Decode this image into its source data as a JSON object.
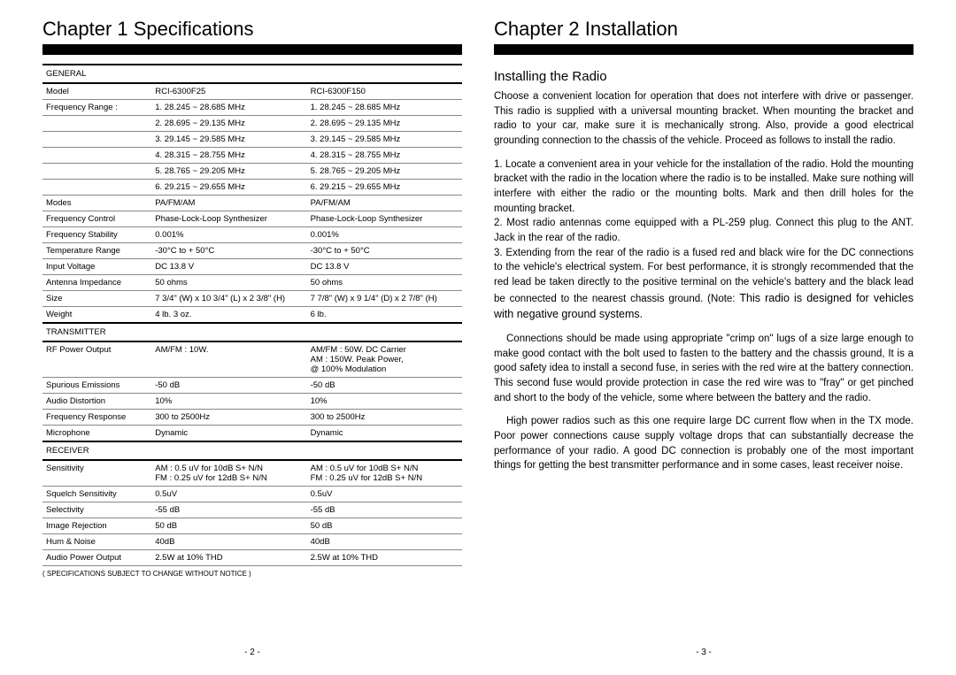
{
  "left": {
    "chapter": "Chapter 1  Specifications",
    "pageNum": "- 2 -",
    "footnote": "( SPECIFICATIONS SUBJECT TO CHANGE WITHOUT NOTICE )",
    "sections": {
      "general": "GENERAL",
      "transmitter": "TRANSMITTER",
      "receiver": "RECEIVER"
    },
    "models": {
      "a": "RCI-6300F25",
      "b": "RCI-6300F150"
    },
    "rows": {
      "model": "Model",
      "freqRange": "Frequency Range :",
      "fr1a": "1. 28.245 ~  28.685 MHz",
      "fr1b": "1. 28.245 ~  28.685 MHz",
      "fr2a": "2. 28.695 ~  29.135 MHz",
      "fr2b": "2. 28.695 ~  29.135 MHz",
      "fr3a": "3. 29.145 ~  29.585 MHz",
      "fr3b": "3. 29.145 ~  29.585 MHz",
      "fr4a": "4. 28.315 ~  28.755 MHz",
      "fr4b": "4. 28.315 ~  28.755 MHz",
      "fr5a": "5. 28.765 ~  29.205 MHz",
      "fr5b": "5. 28.765 ~  29.205 MHz",
      "fr6a": "6. 29.215 ~  29.655 MHz",
      "fr6b": "6. 29.215 ~  29.655 MHz",
      "modes": "Modes",
      "modesA": "PA/FM/AM",
      "modesB": "PA/FM/AM",
      "freqCtrl": "Frequency Control",
      "freqCtrlA": "Phase-Lock-Loop Synthesizer",
      "freqCtrlB": "Phase-Lock-Loop Synthesizer",
      "freqStab": "Frequency Stability",
      "freqStabA": "0.001%",
      "freqStabB": "0.001%",
      "tempRange": "Temperature Range",
      "tempRangeA": "-30°C to + 50°C",
      "tempRangeB": "-30°C to + 50°C",
      "inputV": "Input Voltage",
      "inputVA": "DC 13.8 V",
      "inputVB": "DC 13.8 V",
      "antImp": "Antenna Impedance",
      "antImpA": "50 ohms",
      "antImpB": "50 ohms",
      "size": "Size",
      "sizeA": "7 3/4\" (W) x 10 3/4\" (L) x 2 3/8\" (H)",
      "sizeB": "7 7/8\" (W) x 9 1/4\" (D) x 2 7/8\" (H)",
      "weight": "Weight",
      "weightA": "4 lb. 3 oz.",
      "weightB": "6 lb.",
      "rfOut": "RF Power Output",
      "rfOutA": "AM/FM : 10W.",
      "rfOutB1": "AM/FM :  50W. DC Carrier",
      "rfOutB2": "AM : 150W. Peak Power,",
      "rfOutB3": "@ 100% Modulation",
      "spur": "Spurious Emissions",
      "spurA": "-50 dB",
      "spurB": "-50 dB",
      "audioDist": "Audio Distortion",
      "audioDistA": "10%",
      "audioDistB": "10%",
      "freqResp": "Frequency Response",
      "freqRespA": "300 to 2500Hz",
      "freqRespB": "300 to 2500Hz",
      "mic": "Microphone",
      "micA": "Dynamic",
      "micB": "Dynamic",
      "sens": "Sensitivity",
      "sensA1": "AM :  0.5  uV  for 10dB  S+ N/N",
      "sensA2": "FM :  0.25 uV  for 12dB  S+ N/N",
      "sensB1": "AM :  0.5  uV  for 10dB  S+ N/N",
      "sensB2": "FM :  0.25 uV  for 12dB  S+ N/N",
      "squelch": "Squelch Sensitivity",
      "squelchA": "0.5uV",
      "squelchB": "0.5uV",
      "select": "Selectivity",
      "selectA": "-55 dB",
      "selectB": "-55 dB",
      "imgRej": "Image Rejection",
      "imgRejA": "50 dB",
      "imgRejB": "50 dB",
      "hum": "Hum & Noise",
      "humA": "40dB",
      "humB": "40dB",
      "audioPwr": "Audio Power Output",
      "audioPwrA": "2.5W at 10% THD",
      "audioPwrB": "2.5W at 10% THD"
    }
  },
  "right": {
    "chapter": "Chapter 2  Installation",
    "subheading": "Installing the Radio",
    "pageNum": "- 3 -",
    "p1": "Choose a convenient location for operation that does not interfere with drive or passenger. This radio is supplied with a universal mounting bracket. When mounting the bracket and radio to your car, make sure it is mechanically strong. Also, provide a good electrical grounding connection to the chassis of the vehicle. Proceed as follows to install the radio.",
    "p2a": "1.  Locate a convenient area in your vehicle for the installation of the radio. Hold the mounting bracket with the radio in the location where the radio is to be installed. Make sure nothing will interfere with either the radio or the mounting bolts. Mark and then drill holes for the mounting bracket.",
    "p2b": "2.  Most radio antennas come equipped with a PL-259 plug. Connect this plug to the ANT. Jack in the rear of the radio.",
    "p2c": "3.  Extending from the rear of the radio is a fused red and black wire for the DC connections to the vehicle's electrical system. For best performance, it is strongly recommended that the red lead be taken directly to the positive terminal on the vehicle's battery and the black lead be connected to the nearest chassis ground. (Note: ",
    "p2cEmph": "This radio is designed for vehicles with negative ground systems.",
    "p3": "Connections should  be made using appropriate \"crimp on\" lugs of a size large enough to make good contact with the bolt used to fasten to the battery and the chassis ground, It is a good safety idea to install a second fuse, in series with the red wire at the battery connection. This second fuse would provide protection in case the red wire was to \"fray\" or get pinched and short to the body of the vehicle, some where between the battery and the radio.",
    "p4": "High power radios such as this one require large DC current flow when in the TX mode. Poor power connections cause supply voltage drops that can substantially decrease the performance of your radio. A good DC connection is probably one of the most important things for getting the best transmitter performance and in some cases, least receiver noise."
  }
}
